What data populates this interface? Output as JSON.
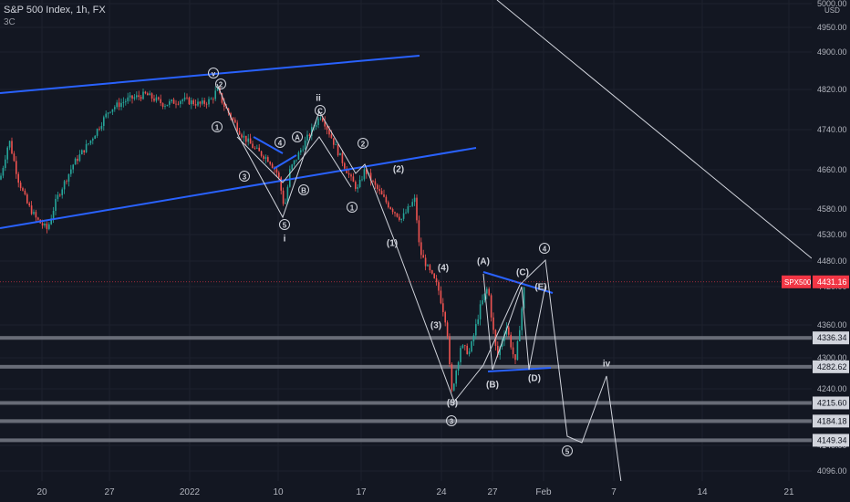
{
  "header": {
    "title": "S&P 500 Index, 1h, FX",
    "sub": "3C"
  },
  "colors": {
    "background": "#131722",
    "grid": "#1e222d",
    "text": "#b2b5be",
    "up_candle": "#26a69a",
    "down_candle": "#ef5350",
    "channel_line": "#2962ff",
    "wave_line": "#d1d4dc",
    "support_band": "#787b86",
    "price_tag": "#f23645"
  },
  "chart_data": {
    "type": "candlestick",
    "title": "S&P 500 Index, 1h, FX",
    "symbol": "SPX500",
    "last_price": 4431.16,
    "currency": "USD",
    "y_ticks": [
      5000,
      4950,
      4900,
      4820,
      4740,
      4660,
      4580,
      4530,
      4480,
      4420,
      4360,
      4300,
      4240,
      4180,
      4140,
      4096
    ],
    "x_ticks": [
      {
        "label": "20"
      },
      {
        "label": "27"
      },
      {
        "label": "2022"
      },
      {
        "label": "10"
      },
      {
        "label": "17"
      },
      {
        "label": "24"
      },
      {
        "label": "27"
      },
      {
        "label": "Feb"
      },
      {
        "label": "7"
      },
      {
        "label": "14"
      },
      {
        "label": "21"
      }
    ],
    "price_path": [
      [
        0,
        4640
      ],
      [
        10,
        4720
      ],
      [
        20,
        4640
      ],
      [
        30,
        4590
      ],
      [
        40,
        4560
      ],
      [
        52,
        4540
      ],
      [
        62,
        4600
      ],
      [
        80,
        4670
      ],
      [
        100,
        4720
      ],
      [
        120,
        4780
      ],
      [
        140,
        4800
      ],
      [
        160,
        4810
      ],
      [
        180,
        4790
      ],
      [
        200,
        4800
      ],
      [
        220,
        4790
      ],
      [
        232,
        4800
      ],
      [
        238,
        4820
      ],
      [
        245,
        4790
      ],
      [
        255,
        4760
      ],
      [
        265,
        4730
      ],
      [
        280,
        4700
      ],
      [
        295,
        4680
      ],
      [
        305,
        4650
      ],
      [
        312,
        4580
      ],
      [
        318,
        4660
      ],
      [
        330,
        4700
      ],
      [
        342,
        4740
      ],
      [
        352,
        4770
      ],
      [
        362,
        4730
      ],
      [
        372,
        4690
      ],
      [
        385,
        4640
      ],
      [
        392,
        4620
      ],
      [
        400,
        4660
      ],
      [
        410,
        4630
      ],
      [
        425,
        4590
      ],
      [
        440,
        4560
      ],
      [
        455,
        4600
      ],
      [
        460,
        4500
      ],
      [
        470,
        4460
      ],
      [
        480,
        4420
      ],
      [
        490,
        4360
      ],
      [
        495,
        4230
      ],
      [
        505,
        4320
      ],
      [
        515,
        4310
      ],
      [
        525,
        4380
      ],
      [
        535,
        4420
      ],
      [
        545,
        4300
      ],
      [
        555,
        4360
      ],
      [
        565,
        4290
      ],
      [
        570,
        4360
      ],
      [
        575,
        4420
      ]
    ],
    "horizontal_levels": [
      {
        "value": 4336.34,
        "label": "4336.34"
      },
      {
        "value": 4282.62,
        "label": "4282.62"
      },
      {
        "value": 4215.6,
        "label": "4215.60"
      },
      {
        "value": 4184.18,
        "label": "4184.18"
      },
      {
        "value": 4149.34,
        "label": "4149.34"
      }
    ],
    "wave_labels": [
      "v",
      "2",
      "1",
      "3",
      "4",
      "5",
      "i",
      "ii",
      "A",
      "B",
      "C",
      "2",
      "1",
      "(2)",
      "(1)",
      "(4)",
      "(3)",
      "(5)",
      "3",
      "(A)",
      "(B)",
      "(C)",
      "(D)",
      "(E)",
      "4",
      "5",
      "iv"
    ]
  }
}
